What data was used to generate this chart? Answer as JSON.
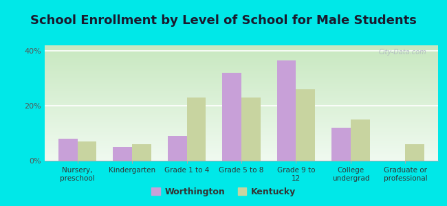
{
  "title": "School Enrollment by Level of School for Male Students",
  "categories": [
    "Nursery,\npreschool",
    "Kindergarten",
    "Grade 1 to 4",
    "Grade 5 to 8",
    "Grade 9 to\n12",
    "College\nundergrad",
    "Graduate or\nprofessional"
  ],
  "worthington": [
    8.0,
    5.0,
    9.0,
    32.0,
    36.5,
    12.0,
    0.0
  ],
  "kentucky": [
    7.0,
    6.0,
    23.0,
    23.0,
    26.0,
    15.0,
    6.0
  ],
  "worthington_color": "#c8a0d8",
  "kentucky_color": "#c8d4a0",
  "background_color": "#00e8e8",
  "title_fontsize": 13,
  "title_color": "#1a1a2e",
  "legend_labels": [
    "Worthington",
    "Kentucky"
  ],
  "ylim": [
    0,
    42
  ],
  "yticks": [
    0,
    20,
    40
  ],
  "ytick_labels": [
    "0%",
    "20%",
    "40%"
  ],
  "watermark": "City-Data.com",
  "tick_label_fontsize": 8,
  "bar_width": 0.35
}
